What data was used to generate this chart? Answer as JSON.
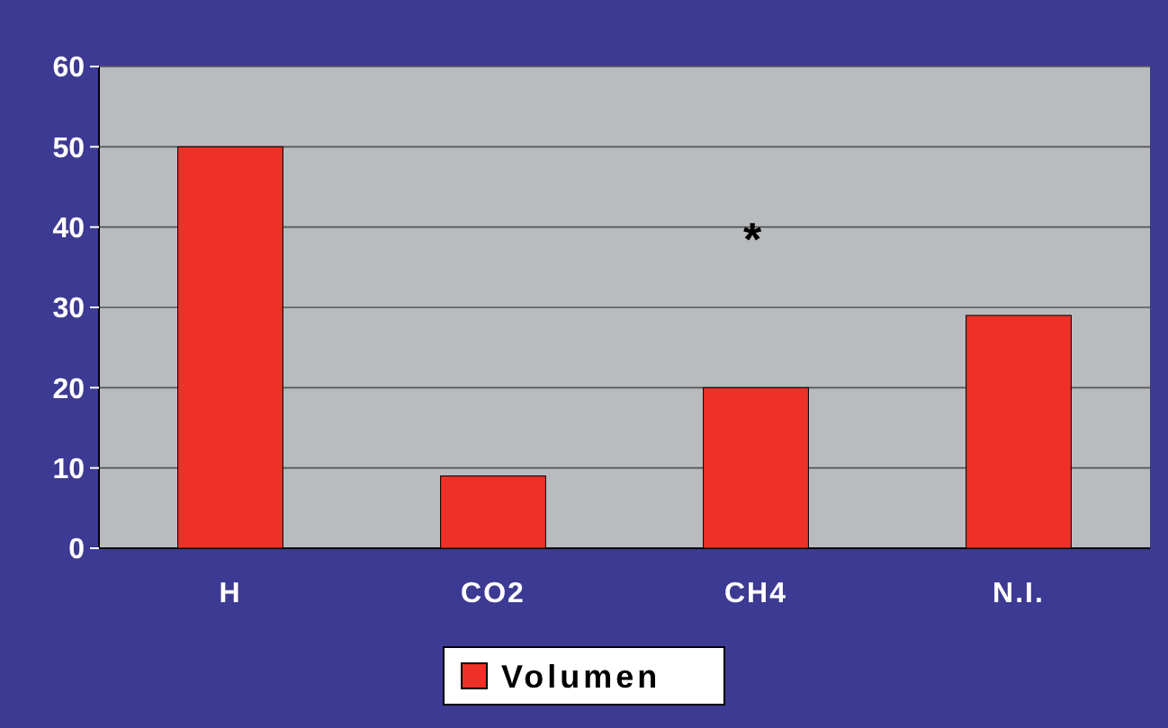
{
  "chart_data": {
    "type": "bar",
    "categories": [
      "H",
      "CO2",
      "CH4",
      "N.I."
    ],
    "series": [
      {
        "name": "Volumen",
        "color": "#ee3128",
        "values": [
          50,
          9,
          20,
          29
        ]
      }
    ],
    "ylim": [
      0,
      60
    ],
    "yticks": [
      0,
      10,
      20,
      30,
      40,
      50,
      60
    ],
    "grid": "y",
    "legend": "bottom",
    "annotations": [
      "*"
    ]
  }
}
